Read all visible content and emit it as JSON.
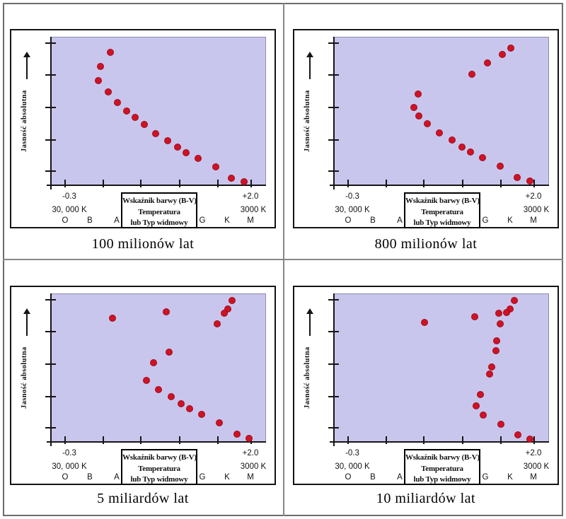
{
  "colors": {
    "plot_bg": "#c9c6ee",
    "dot": "#ce1325",
    "axis": "#151515",
    "plot_border": "#8e8caa",
    "divider": "#878787",
    "frame_border": "#6d6d6d",
    "panel_border": "#141414",
    "page_bg": "#ffffff"
  },
  "shared": {
    "y_axis_label": "Jasność absolutna",
    "y_axis_arrow_icon": "up-arrow",
    "x_left_value": "-0.3",
    "x_right_value": "+2.0",
    "temp_left": "30, 000 K",
    "temp_right": "3000 K",
    "spectral_letters": [
      "O",
      "B",
      "A",
      "G",
      "K",
      "M"
    ],
    "axis_box_lines": [
      "Wskaźnik barwy (B-V)",
      "Temperatura",
      "lub Typ widmowy"
    ],
    "axis": {
      "x_ticks_pct": [
        6.5,
        24.3,
        42,
        60,
        78,
        93.5
      ],
      "y_ticks_pct": [
        4,
        25.5,
        47.5,
        69.5,
        90.5
      ]
    }
  },
  "panels": [
    {
      "caption": "100 milionów lat",
      "points_pct": [
        [
          27.8,
          10.0
        ],
        [
          23.2,
          19.4
        ],
        [
          22.2,
          29.4
        ],
        [
          26.8,
          37.0
        ],
        [
          31.0,
          44.1
        ],
        [
          35.3,
          49.8
        ],
        [
          39.2,
          54.0
        ],
        [
          43.5,
          58.8
        ],
        [
          48.7,
          64.9
        ],
        [
          54.6,
          69.7
        ],
        [
          59.2,
          74.4
        ],
        [
          63.1,
          78.2
        ],
        [
          68.6,
          82.0
        ],
        [
          76.8,
          87.7
        ],
        [
          84.3,
          95.3
        ],
        [
          90.2,
          97.6
        ]
      ]
    },
    {
      "caption": "800 milionów lat",
      "points_pct": [
        [
          82.6,
          7.1
        ],
        [
          78.6,
          11.7
        ],
        [
          71.6,
          17.2
        ],
        [
          64.4,
          24.8
        ],
        [
          39.2,
          38.5
        ],
        [
          37.2,
          47.4
        ],
        [
          39.6,
          53.2
        ],
        [
          43.7,
          58.2
        ],
        [
          49.3,
          64.6
        ],
        [
          55.1,
          69.2
        ],
        [
          59.7,
          74.3
        ],
        [
          63.8,
          77.7
        ],
        [
          69.2,
          81.5
        ],
        [
          77.7,
          87.1
        ],
        [
          85.6,
          94.6
        ],
        [
          91.3,
          97.2
        ]
      ]
    },
    {
      "caption": "5 miliardów lat",
      "points_pct": [
        [
          84.5,
          4.4
        ],
        [
          82.6,
          10.2
        ],
        [
          80.9,
          13.1
        ],
        [
          53.9,
          12.1
        ],
        [
          28.8,
          16.1
        ],
        [
          77.5,
          20.2
        ],
        [
          55.2,
          39.2
        ],
        [
          48.0,
          46.3
        ],
        [
          44.6,
          58.2
        ],
        [
          50.2,
          64.6
        ],
        [
          56.0,
          69.2
        ],
        [
          60.6,
          74.2
        ],
        [
          64.8,
          77.5
        ],
        [
          70.3,
          81.5
        ],
        [
          78.6,
          86.9
        ],
        [
          86.7,
          94.6
        ],
        [
          92.5,
          97.5
        ]
      ]
    },
    {
      "caption": "10 miliardów lat",
      "points_pct": [
        [
          84.1,
          4.4
        ],
        [
          82.1,
          9.9
        ],
        [
          80.6,
          12.6
        ],
        [
          76.8,
          12.8
        ],
        [
          65.8,
          15.5
        ],
        [
          42.1,
          18.9
        ],
        [
          77.6,
          20.2
        ],
        [
          76.0,
          31.6
        ],
        [
          75.7,
          38.3
        ],
        [
          73.5,
          49.2
        ],
        [
          72.5,
          54.2
        ],
        [
          68.4,
          68.1
        ],
        [
          66.2,
          75.6
        ],
        [
          69.6,
          82.0
        ],
        [
          77.9,
          87.9
        ],
        [
          85.7,
          95.1
        ],
        [
          91.5,
          97.9
        ]
      ]
    }
  ],
  "chart_data": [
    {
      "type": "scatter",
      "title": "100 milionów lat",
      "xlabel": "Wskaźnik barwy (B-V)",
      "ylabel": "Jasność absolutna",
      "x_secondary_labels": {
        "temperature": [
          "30, 000 K",
          "3000 K"
        ],
        "spectral_types": [
          "O",
          "B",
          "A",
          "G",
          "K",
          "M"
        ]
      },
      "xlim": [
        -0.47,
        2.18
      ],
      "ylim": [
        0,
        1
      ],
      "y_units": "fraction_of_axis_height",
      "grid": false,
      "legend": false,
      "points_bv_lum": [
        [
          0.26,
          0.9
        ],
        [
          0.14,
          0.81
        ],
        [
          0.12,
          0.71
        ],
        [
          0.24,
          0.63
        ],
        [
          0.35,
          0.56
        ],
        [
          0.46,
          0.5
        ],
        [
          0.57,
          0.46
        ],
        [
          0.68,
          0.41
        ],
        [
          0.82,
          0.35
        ],
        [
          0.98,
          0.3
        ],
        [
          1.1,
          0.26
        ],
        [
          1.2,
          0.22
        ],
        [
          1.35,
          0.18
        ],
        [
          1.57,
          0.12
        ],
        [
          1.77,
          0.05
        ],
        [
          1.92,
          0.02
        ]
      ]
    },
    {
      "type": "scatter",
      "title": "800 milionów lat",
      "xlabel": "Wskaźnik barwy (B-V)",
      "ylabel": "Jasność absolutna",
      "x_secondary_labels": {
        "temperature": [
          "30, 000 K",
          "3000 K"
        ],
        "spectral_types": [
          "O",
          "B",
          "A",
          "G",
          "K",
          "M"
        ]
      },
      "xlim": [
        -0.47,
        2.18
      ],
      "ylim": [
        0,
        1
      ],
      "y_units": "fraction_of_axis_height",
      "grid": false,
      "legend": false,
      "points_bv_lum": [
        [
          1.68,
          0.93
        ],
        [
          1.57,
          0.88
        ],
        [
          1.39,
          0.83
        ],
        [
          1.2,
          0.75
        ],
        [
          0.55,
          0.62
        ],
        [
          0.5,
          0.53
        ],
        [
          0.56,
          0.47
        ],
        [
          0.66,
          0.42
        ],
        [
          0.81,
          0.35
        ],
        [
          0.96,
          0.31
        ],
        [
          1.08,
          0.26
        ],
        [
          1.19,
          0.22
        ],
        [
          1.33,
          0.19
        ],
        [
          1.55,
          0.13
        ],
        [
          1.75,
          0.05
        ],
        [
          1.9,
          0.03
        ]
      ]
    },
    {
      "type": "scatter",
      "title": "5 miliardów lat",
      "xlabel": "Wskaźnik barwy (B-V)",
      "ylabel": "Jasność absolutna",
      "x_secondary_labels": {
        "temperature": [
          "30, 000 K",
          "3000 K"
        ],
        "spectral_types": [
          "O",
          "B",
          "A",
          "G",
          "K",
          "M"
        ]
      },
      "xlim": [
        -0.47,
        2.18
      ],
      "ylim": [
        0,
        1
      ],
      "y_units": "fraction_of_axis_height",
      "grid": false,
      "legend": false,
      "points_bv_lum": [
        [
          1.76,
          0.96
        ],
        [
          1.71,
          0.9
        ],
        [
          1.67,
          0.87
        ],
        [
          0.95,
          0.88
        ],
        [
          0.28,
          0.84
        ],
        [
          1.58,
          0.8
        ],
        [
          0.98,
          0.61
        ],
        [
          0.79,
          0.54
        ],
        [
          0.7,
          0.42
        ],
        [
          0.85,
          0.35
        ],
        [
          1.01,
          0.31
        ],
        [
          1.13,
          0.26
        ],
        [
          1.24,
          0.23
        ],
        [
          1.38,
          0.19
        ],
        [
          1.61,
          0.13
        ],
        [
          1.82,
          0.05
        ],
        [
          1.97,
          0.03
        ]
      ]
    },
    {
      "type": "scatter",
      "title": "10 miliardów lat",
      "xlabel": "Wskaźnik barwy (B-V)",
      "ylabel": "Jasność absolutna",
      "x_secondary_labels": {
        "temperature": [
          "30, 000 K",
          "3000 K"
        ],
        "spectral_types": [
          "O",
          "B",
          "A",
          "G",
          "K",
          "M"
        ]
      },
      "xlim": [
        -0.47,
        2.18
      ],
      "ylim": [
        0,
        1
      ],
      "y_units": "fraction_of_axis_height",
      "grid": false,
      "legend": false,
      "points_bv_lum": [
        [
          1.75,
          0.96
        ],
        [
          1.7,
          0.9
        ],
        [
          1.66,
          0.87
        ],
        [
          1.56,
          0.87
        ],
        [
          1.27,
          0.85
        ],
        [
          0.64,
          0.81
        ],
        [
          1.58,
          0.8
        ],
        [
          1.54,
          0.68
        ],
        [
          1.53,
          0.62
        ],
        [
          1.47,
          0.51
        ],
        [
          1.45,
          0.46
        ],
        [
          1.34,
          0.32
        ],
        [
          1.28,
          0.24
        ],
        [
          1.37,
          0.18
        ],
        [
          1.59,
          0.12
        ],
        [
          1.79,
          0.05
        ],
        [
          1.95,
          0.02
        ]
      ]
    }
  ]
}
